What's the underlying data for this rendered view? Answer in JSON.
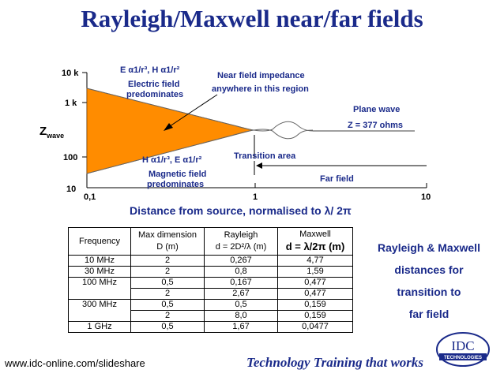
{
  "title": "Rayleigh/Maxwell near/far fields",
  "diagram": {
    "y_axis_label": "Z",
    "y_axis_sub": "wave",
    "y_ticks": [
      "10 k",
      "1 k",
      "100",
      "10"
    ],
    "x_ticks": [
      "0,1",
      "1",
      "10"
    ],
    "x_axis_label": "Distance from source, normalised to λ/ 2π",
    "electric_formula": "E α1/r³,  H α1/r²",
    "electric_text_1": "Electric field",
    "electric_text_2": "predominates",
    "magnetic_formula": "H α1/r³,  E α1/r²",
    "magnetic_text_1": "Magnetic field",
    "magnetic_text_2": "predominates",
    "near_field_1": "Near field impedance",
    "near_field_2": "anywhere in this region",
    "plane_wave_1": "Plane wave",
    "plane_wave_2": "Z = 377 ohms",
    "transition": "Transition area",
    "far_field": "Far field",
    "colors": {
      "fill": "#ff8c00",
      "title": "#1a2a8a"
    }
  },
  "table": {
    "headers": [
      [
        "Frequency",
        ""
      ],
      [
        "Max dimension",
        "D (m)"
      ],
      [
        "Rayleigh",
        "d = 2D²/λ  (m)"
      ],
      [
        "Maxwell",
        "d = λ/2π  (m)"
      ]
    ],
    "rows": [
      [
        "10 MHz",
        "2",
        "0,267",
        "4,77"
      ],
      [
        "30 MHz",
        "2",
        "0,8",
        "1,59"
      ],
      [
        "100 MHz",
        "0,5",
        "0,167",
        "0,477"
      ],
      [
        "",
        "2",
        "2,67",
        "0,477"
      ],
      [
        "300 MHz",
        "0,5",
        "0,5",
        "0,159"
      ],
      [
        "",
        "2",
        "8,0",
        "0,159"
      ],
      [
        "1 GHz",
        "0,5",
        "1,67",
        "0,0477"
      ]
    ]
  },
  "side_text": [
    "Rayleigh & Maxwell",
    "distances for",
    "transition to",
    "far field"
  ],
  "footer": {
    "url": "www.idc-online.com/slideshare",
    "slogan": "Technology Training that works",
    "logo_main": "IDC",
    "logo_sub": "TECHNOLOGIES"
  }
}
